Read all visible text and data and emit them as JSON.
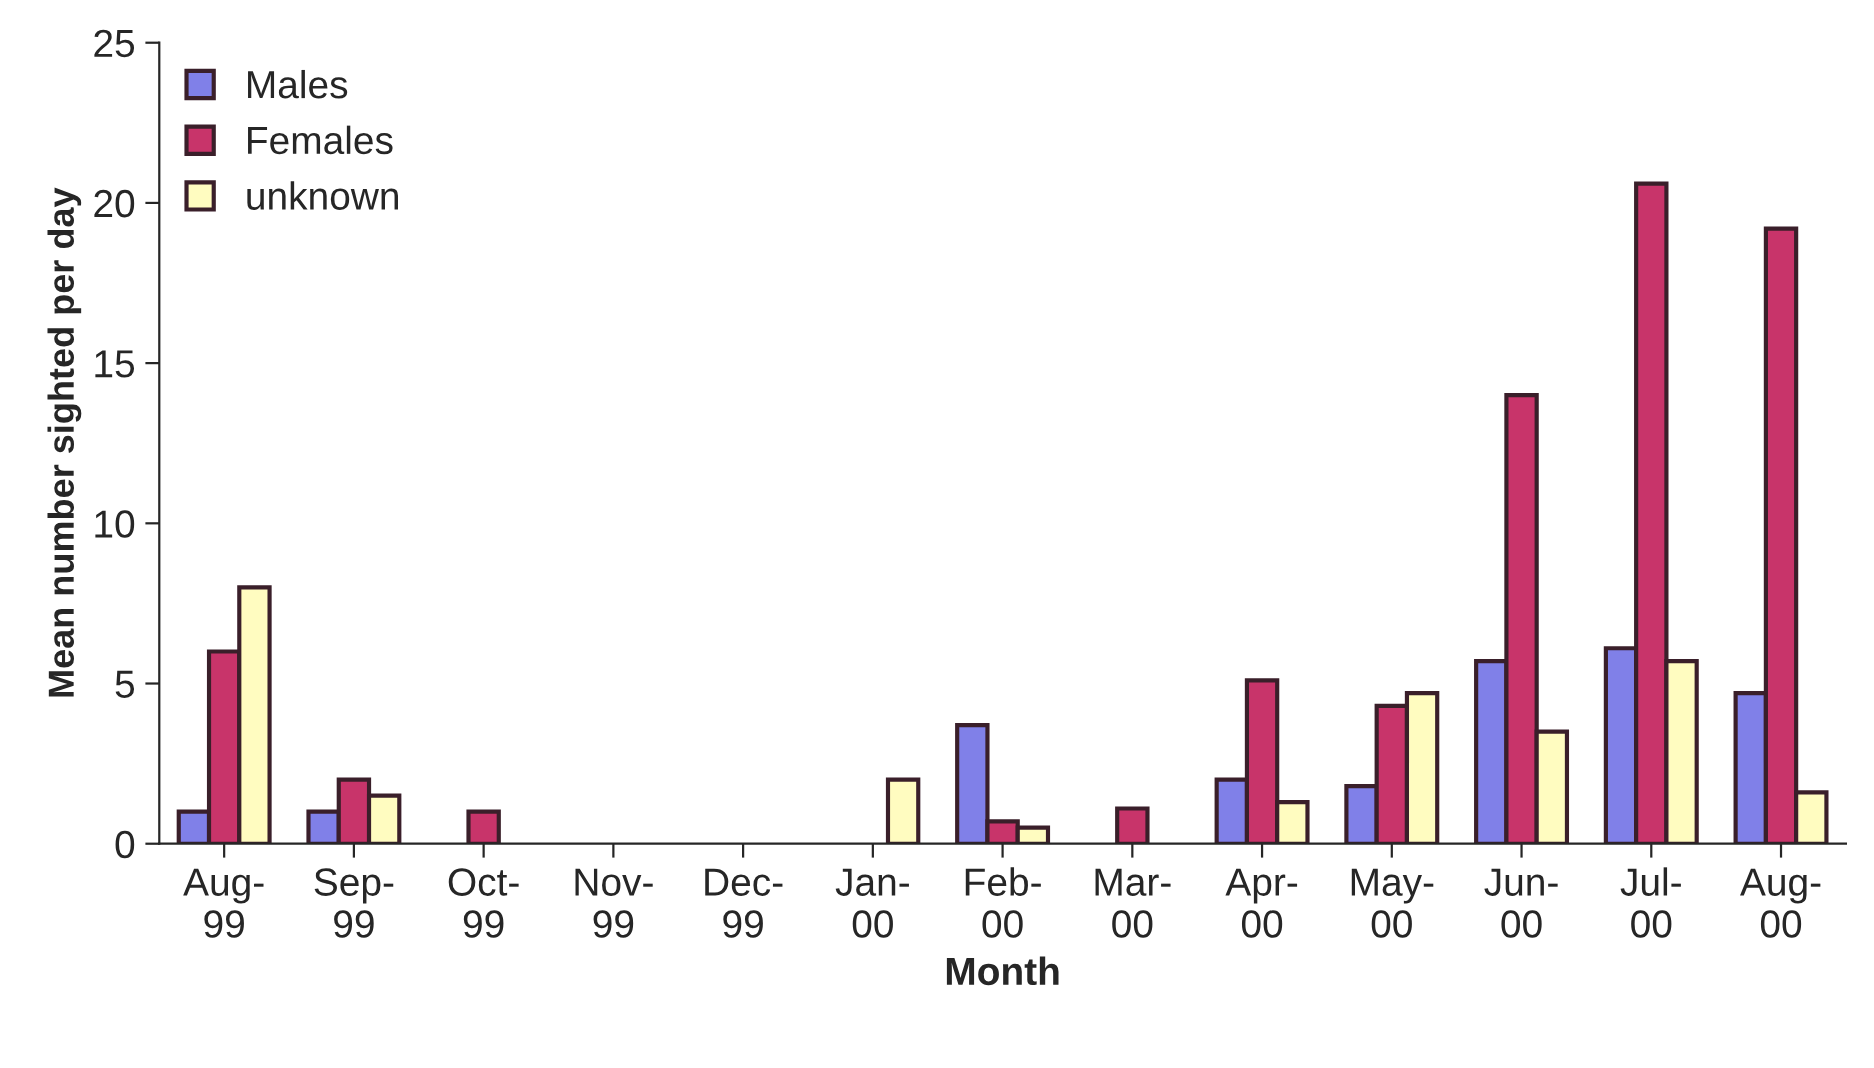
{
  "chart_data": {
    "type": "bar",
    "xlabel": "Month",
    "ylabel": "Mean number sighted per day",
    "categories": [
      "Aug-\n99",
      "Sep-\n99",
      "Oct-\n99",
      "Nov-\n99",
      "Dec-\n99",
      "Jan-\n00",
      "Feb-\n00",
      "Mar-\n00",
      "Apr-\n00",
      "May-\n00",
      "Jun-\n00",
      "Jul-\n00",
      "Aug-\n00"
    ],
    "series": [
      {
        "name": "Males",
        "color": "#8080e8",
        "values": [
          1,
          1,
          0,
          0,
          0,
          0,
          3.7,
          0,
          2,
          1.8,
          5.7,
          6.1,
          4.7
        ]
      },
      {
        "name": "Females",
        "color": "#c8346a",
        "values": [
          6,
          2,
          1,
          0,
          0,
          0,
          0.7,
          1.1,
          5.1,
          4.3,
          14,
          20.6,
          19.2
        ]
      },
      {
        "name": "unknown",
        "color": "#fffcc0",
        "values": [
          8,
          1.5,
          0,
          0,
          0,
          2,
          0.5,
          0,
          1.3,
          4.7,
          3.5,
          5.7,
          1.6
        ]
      }
    ],
    "ylim": [
      0,
      25
    ],
    "yticks": [
      0,
      5,
      10,
      15,
      20,
      25
    ],
    "grid": false,
    "legend": "top left"
  }
}
